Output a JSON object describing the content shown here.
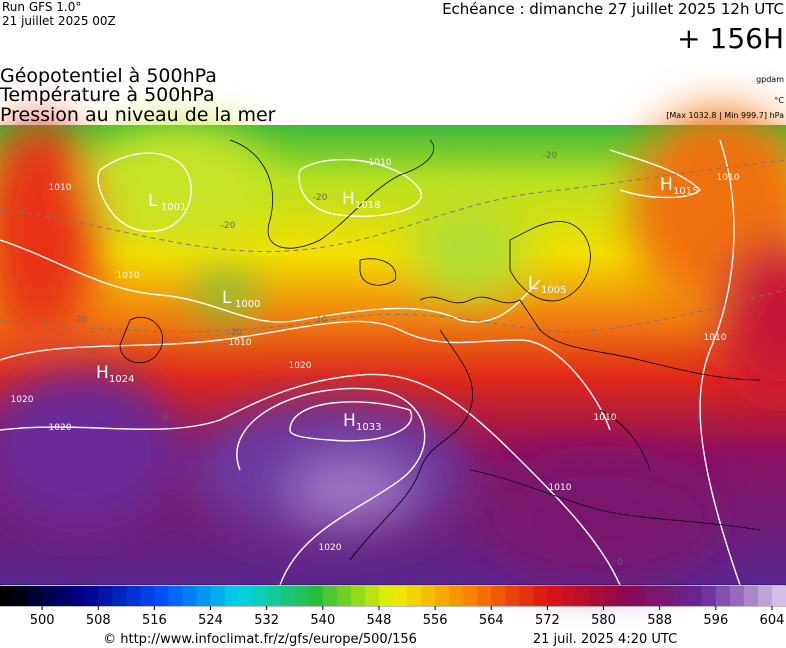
{
  "header": {
    "run": "Run GFS 1.0°",
    "run_date": "21 juillet 2025 00Z",
    "valid": "Echéance : dimanche 27 juillet 2025 12h UTC",
    "lead": "+ 156H"
  },
  "titles": [
    "Géopotentiel à 500hPa",
    "Température à 500hPa",
    "Pression au niveau de la mer"
  ],
  "units": {
    "geopotential": "gpdam",
    "temperature": "°C",
    "pressure": "[Max 1032.8 | Min 999.7] hPa"
  },
  "centers": [
    {
      "letter": "H",
      "value": "1018"
    },
    {
      "letter": "L",
      "value": "1000"
    },
    {
      "letter": "H",
      "value": "1024"
    },
    {
      "letter": "H",
      "value": "1033"
    },
    {
      "letter": "H",
      "value": "1015"
    },
    {
      "letter": "L",
      "value": "1005"
    },
    {
      "letter": "L",
      "value": "1001"
    }
  ],
  "contour_labels": [
    "1010",
    "1010",
    "1010",
    "1020",
    "1020",
    "1020",
    "1010",
    "1010",
    "1010",
    "1020",
    "1010",
    "1010"
  ],
  "temp_labels": [
    "-20",
    "-20",
    "-20",
    "-20",
    "-10",
    "-20",
    "0",
    "0"
  ],
  "colorbar": {
    "range": [
      494,
      606
    ],
    "ticks": [
      500,
      508,
      516,
      524,
      532,
      540,
      548,
      556,
      564,
      572,
      580,
      588,
      596,
      604
    ]
  },
  "footer": {
    "url": "© http://www.infoclimat.fr/z/gfs/europe/500/156",
    "generated": "21 juil. 2025  4:20 UTC"
  }
}
